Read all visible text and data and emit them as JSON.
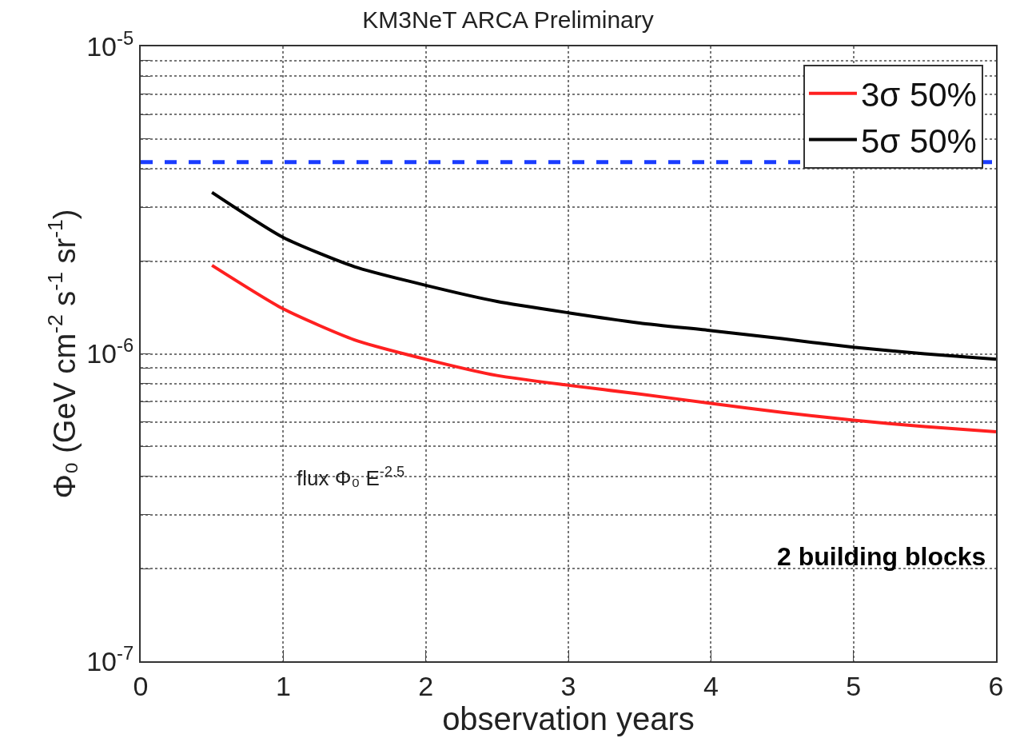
{
  "chart_data": {
    "type": "line",
    "title": "KM3NeT ARCA Preliminary",
    "xlabel": "observation years",
    "ylabel": "Φ₀ (GeV cm$^{-2}$ s$^{-1}$ sr$^{-1}$)",
    "x": [
      0.5,
      1,
      1.5,
      2,
      2.5,
      3,
      3.5,
      4,
      4.5,
      5,
      5.5,
      6
    ],
    "series": [
      {
        "name": "3σ 50%",
        "color": "#ff2020",
        "values": [
          1.94e-06,
          1.4e-06,
          1.11e-06,
          9.6e-07,
          8.5e-07,
          7.9e-07,
          7.4e-07,
          6.9e-07,
          6.45e-07,
          6.08e-07,
          5.8e-07,
          5.58e-07
        ]
      },
      {
        "name": "5σ 50%",
        "color": "#000000",
        "values": [
          3.35e-06,
          2.39e-06,
          1.92e-06,
          1.67e-06,
          1.48e-06,
          1.36e-06,
          1.26e-06,
          1.19e-06,
          1.12e-06,
          1.05e-06,
          1e-06,
          9.6e-07
        ]
      }
    ],
    "ref_lines": [
      {
        "axis": "y",
        "value": 4.2e-06,
        "color": "#1a3cff",
        "line_style": "dashed"
      }
    ],
    "annotations": [
      "flux Φ₀ E$^{-2.5}$",
      "2 building blocks"
    ],
    "log": "y",
    "xlim": [
      0,
      6
    ],
    "xticks": [
      0,
      1,
      2,
      3,
      4,
      5,
      6
    ],
    "ylim": [
      1e-07,
      1e-05
    ],
    "yticks": [
      {
        "value": 1e-07,
        "label": "10$^{-7}$"
      },
      {
        "value": 2e-07,
        "label": null
      },
      {
        "value": 3e-07,
        "label": null
      },
      {
        "value": 4e-07,
        "label": null
      },
      {
        "value": 5e-07,
        "label": null
      },
      {
        "value": 6e-07,
        "label": null
      },
      {
        "value": 7e-07,
        "label": null
      },
      {
        "value": 8e-07,
        "label": null
      },
      {
        "value": 9e-07,
        "label": null
      },
      {
        "value": 1e-06,
        "label": "10$^{-6}$"
      },
      {
        "value": 2e-06,
        "label": null
      },
      {
        "value": 3e-06,
        "label": null
      },
      {
        "value": 4e-06,
        "label": null
      },
      {
        "value": 5e-06,
        "label": null
      },
      {
        "value": 6e-06,
        "label": null
      },
      {
        "value": 7e-06,
        "label": null
      },
      {
        "value": 8e-06,
        "label": null
      },
      {
        "value": 9e-06,
        "label": null
      },
      {
        "value": 1e-05,
        "label": "10$^{-5}$"
      }
    ],
    "grid": true,
    "legend": "top right",
    "line_style": "solid",
    "marker": "none"
  }
}
